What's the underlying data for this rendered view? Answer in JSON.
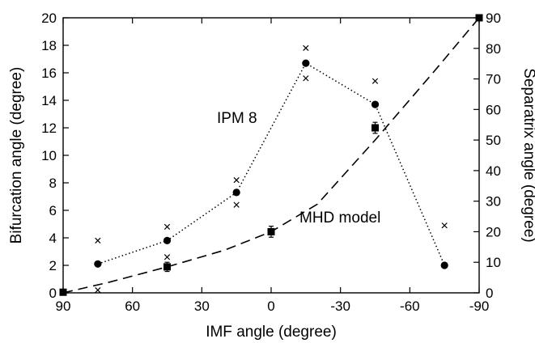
{
  "chart_data": {
    "type": "line",
    "xlabel": "IMF angle (degree)",
    "ylabel": "Bifurcation angle (degree)",
    "y2label": "Separatrix angle (degree)",
    "x_axis_reversed": true,
    "xlim": [
      90,
      -90
    ],
    "ylim": [
      0,
      20
    ],
    "y2lim": [
      0,
      90
    ],
    "x_ticks": [
      90,
      60,
      30,
      0,
      -30,
      -60,
      -90
    ],
    "y_ticks": [
      0,
      2,
      4,
      6,
      8,
      10,
      12,
      14,
      16,
      18,
      20
    ],
    "y2_ticks": [
      0,
      10,
      20,
      30,
      40,
      50,
      60,
      70,
      80,
      90
    ],
    "grid": false,
    "annotations": [
      {
        "text": "IPM 8",
        "series": "bifurcation"
      },
      {
        "text": "MHD model",
        "series": "separatrix"
      }
    ],
    "series": [
      {
        "id": "bifurcation",
        "axis": "left",
        "marker": "circle",
        "line": "dotted",
        "points": [
          {
            "x": 75,
            "y": 2.1
          },
          {
            "x": 45,
            "y": 3.8
          },
          {
            "x": 15,
            "y": 7.3
          },
          {
            "x": -15,
            "y": 16.7
          },
          {
            "x": -45,
            "y": 13.7
          },
          {
            "x": -75,
            "y": 2.0
          }
        ],
        "range_markers": [
          {
            "x": 75,
            "y": [
              0.2,
              3.8
            ]
          },
          {
            "x": 45,
            "y": [
              2.6,
              4.8
            ]
          },
          {
            "x": 15,
            "y": [
              6.4,
              8.2
            ]
          },
          {
            "x": -15,
            "y": [
              15.6,
              17.8
            ]
          },
          {
            "x": -45,
            "y": [
              12.0,
              15.4
            ]
          },
          {
            "x": -75,
            "y": [
              4.9
            ]
          }
        ]
      },
      {
        "id": "separatrix",
        "axis": "right",
        "marker": "square",
        "line": "dashed",
        "points": [
          {
            "x": 90,
            "y": 0.2,
            "err": 0
          },
          {
            "x": 45,
            "y": 8.5,
            "err": 1.5
          },
          {
            "x": 0,
            "y": 20,
            "err": 1.8
          },
          {
            "x": -45,
            "y": 54,
            "err": 1.8
          },
          {
            "x": -90,
            "y": 90,
            "err": 0
          }
        ],
        "curve": [
          {
            "x": 90,
            "y": 0
          },
          {
            "x": 70,
            "y": 3.5
          },
          {
            "x": 45,
            "y": 8.5
          },
          {
            "x": 20,
            "y": 14
          },
          {
            "x": 0,
            "y": 20
          },
          {
            "x": -20,
            "y": 29
          },
          {
            "x": -45,
            "y": 50
          },
          {
            "x": -70,
            "y": 72
          },
          {
            "x": -90,
            "y": 90
          }
        ]
      }
    ]
  }
}
